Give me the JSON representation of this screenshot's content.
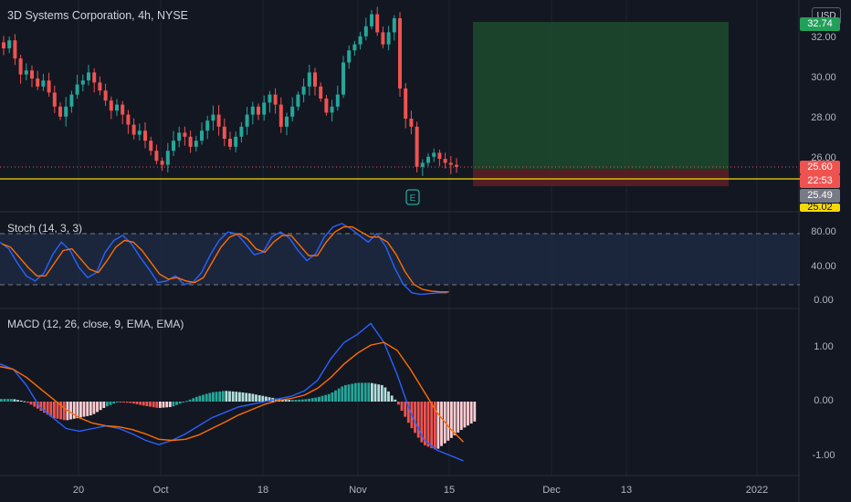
{
  "header": {
    "title": "3D Systems Corporation, 4h, NYSE",
    "currency": "USD"
  },
  "price_axis": {
    "ticks": [
      "32.00",
      "30.00",
      "28.00",
      "26.00"
    ],
    "tags": {
      "top": "32.74",
      "current": "25.60",
      "countdown": "22:53",
      "line": "25.49",
      "bottom": "25.02"
    }
  },
  "stoch": {
    "title": "Stoch (14, 3, 3)",
    "ticks": [
      "80.00",
      "40.00",
      "0.00"
    ]
  },
  "macd": {
    "title": "MACD (12, 26, close, 9, EMA, EMA)",
    "ticks": [
      "1.00",
      "0.00",
      "-1.00"
    ]
  },
  "time_axis": [
    "20",
    "Oct",
    "18",
    "Nov",
    "15",
    "Dec",
    "13",
    "2022"
  ],
  "earnings_marker": {
    "label": "E"
  },
  "colors": {
    "up": "#26a69a",
    "down": "#ef5350",
    "stoch_k": "#2962ff",
    "stoch_d": "#ff6d00",
    "macd": "#2962ff",
    "signal": "#ff6d00",
    "yellow_line": "#f5d90a",
    "profit_zone": "#1d4a2c",
    "loss_zone": "#5a1f24"
  },
  "chart_data": [
    {
      "type": "candlestick",
      "title": "3D Systems Corporation, 4h, NYSE",
      "ylim": [
        24.9,
        33.0
      ],
      "close_series": [
        31.5,
        31.9,
        31.0,
        30.2,
        30.4,
        30.0,
        29.6,
        29.9,
        29.3,
        28.6,
        28.1,
        28.6,
        29.2,
        29.7,
        29.9,
        30.3,
        29.8,
        29.4,
        28.9,
        28.4,
        28.7,
        28.2,
        27.7,
        27.2,
        27.4,
        26.9,
        26.4,
        25.9,
        25.7,
        26.4,
        26.9,
        27.3,
        27.1,
        26.6,
        26.9,
        27.4,
        27.9,
        28.2,
        27.6,
        27.0,
        26.6,
        27.1,
        27.6,
        28.2,
        28.6,
        28.2,
        28.8,
        29.2,
        28.7,
        27.6,
        28.1,
        28.6,
        29.2,
        29.6,
        30.3,
        29.6,
        29.0,
        28.3,
        28.6,
        29.2,
        30.8,
        31.4,
        31.7,
        32.1,
        32.6,
        33.2,
        32.3,
        31.7,
        32.3,
        33.0,
        29.5,
        28.0,
        27.6,
        25.6,
        25.8,
        26.1,
        26.3,
        26.0,
        25.8,
        25.7,
        25.6
      ],
      "stoch_k": [
        70,
        62,
        45,
        30,
        24,
        33,
        55,
        70,
        60,
        40,
        28,
        34,
        58,
        72,
        78,
        68,
        52,
        38,
        22,
        24,
        30,
        20,
        22,
        34,
        55,
        72,
        82,
        80,
        68,
        55,
        58,
        76,
        82,
        75,
        60,
        48,
        56,
        76,
        88,
        92,
        86,
        78,
        70,
        80,
        65,
        40,
        20,
        10,
        8,
        9,
        10,
        10
      ],
      "stoch_d": [
        68,
        64,
        52,
        40,
        30,
        30,
        45,
        60,
        62,
        50,
        38,
        34,
        48,
        64,
        72,
        70,
        60,
        46,
        32,
        26,
        28,
        24,
        22,
        28,
        46,
        64,
        76,
        80,
        74,
        62,
        58,
        70,
        78,
        78,
        66,
        54,
        54,
        70,
        82,
        88,
        88,
        82,
        76,
        76,
        70,
        55,
        35,
        20,
        14,
        12,
        11,
        11
      ],
      "macd": [
        0.7,
        0.6,
        0.3,
        -0.1,
        -0.3,
        -0.5,
        -0.55,
        -0.5,
        -0.45,
        -0.5,
        -0.6,
        -0.72,
        -0.8,
        -0.72,
        -0.6,
        -0.45,
        -0.3,
        -0.2,
        -0.1,
        -0.05,
        0.0,
        0.05,
        0.1,
        0.2,
        0.4,
        0.8,
        1.1,
        1.25,
        1.45,
        1.1,
        0.5,
        -0.2,
        -0.7,
        -0.9,
        -1.0,
        -1.1
      ],
      "signal": [
        0.65,
        0.6,
        0.45,
        0.25,
        0.05,
        -0.15,
        -0.3,
        -0.4,
        -0.45,
        -0.47,
        -0.52,
        -0.6,
        -0.7,
        -0.72,
        -0.7,
        -0.62,
        -0.5,
        -0.38,
        -0.25,
        -0.15,
        -0.05,
        0.02,
        0.06,
        0.12,
        0.25,
        0.45,
        0.7,
        0.9,
        1.05,
        1.1,
        0.95,
        0.6,
        0.2,
        -0.2,
        -0.5,
        -0.75
      ],
      "histogram": [
        0.05,
        0.0,
        -0.15,
        -0.3,
        -0.35,
        -0.3,
        -0.25,
        -0.1,
        0.0,
        -0.03,
        -0.08,
        -0.12,
        -0.1,
        0.0,
        0.1,
        0.17,
        0.2,
        0.18,
        0.15,
        0.1,
        0.05,
        0.03,
        0.04,
        0.08,
        0.15,
        0.3,
        0.35,
        0.35,
        0.3,
        0.0,
        -0.45,
        -0.8,
        -0.9,
        -0.7,
        -0.5,
        -0.35
      ],
      "stoch_ylim": [
        0,
        100
      ],
      "macd_ylim": [
        -1.25,
        1.55
      ]
    }
  ]
}
